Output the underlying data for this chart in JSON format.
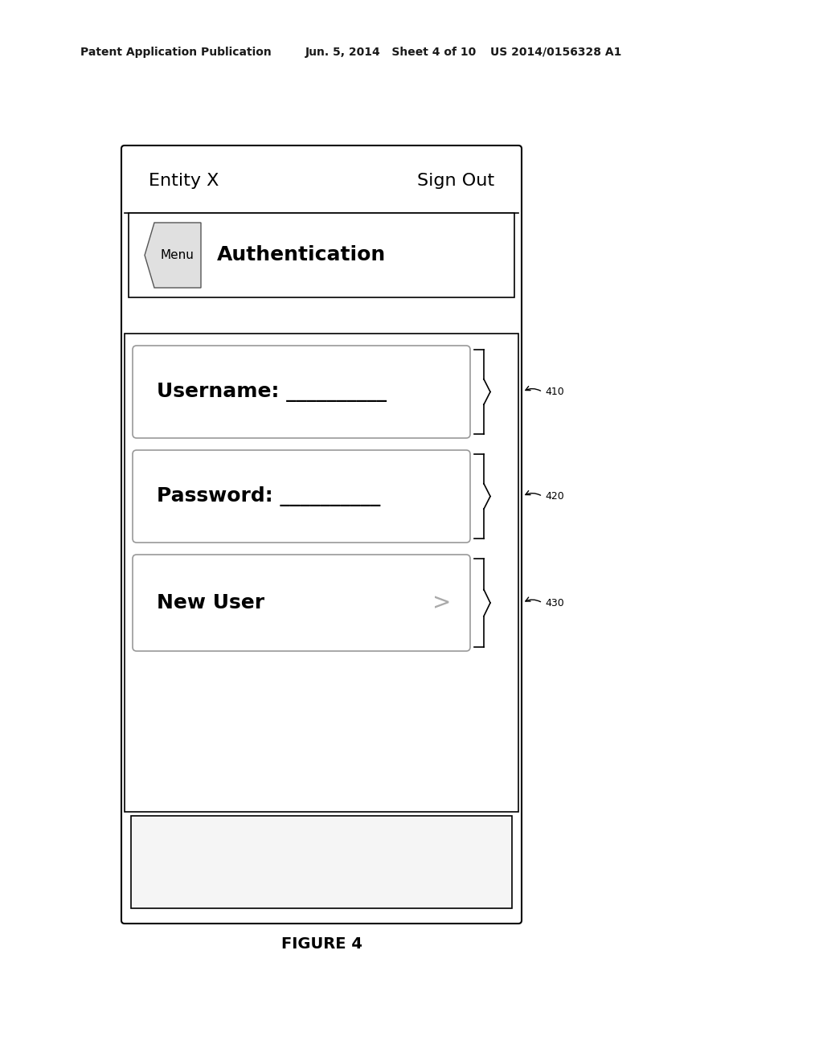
{
  "bg_color": "#ffffff",
  "header_left": "Patent Application Publication",
  "header_mid": "Jun. 5, 2014   Sheet 4 of 10",
  "header_right": "US 2014/0156328 A1",
  "figure_label": "FIGURE 4",
  "entity_x": "Entity X",
  "sign_out": "Sign Out",
  "menu_text": "Menu",
  "auth_text": "Authentication",
  "username_label": "Username: __________",
  "password_label": "Password: __________",
  "new_user_label": "New User",
  "label_410": "410",
  "label_420": "420",
  "label_430": "430"
}
